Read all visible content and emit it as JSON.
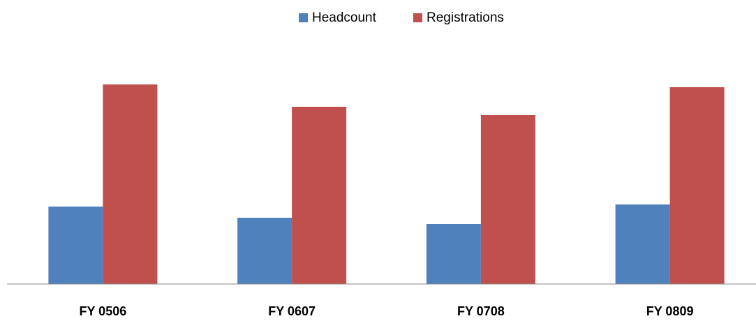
{
  "chart_data": {
    "type": "bar",
    "categories": [
      "FY 0506",
      "FY 0607",
      "FY 0708",
      "FY 0809"
    ],
    "series": [
      {
        "name": "Headcount",
        "color": "#4f81bd",
        "values": [
          111,
          95,
          86,
          114
        ]
      },
      {
        "name": "Registrations",
        "color": "#c0504d",
        "values": [
          286,
          254,
          242,
          282
        ]
      }
    ],
    "ylim": [
      0,
      300
    ],
    "legend": "top"
  }
}
